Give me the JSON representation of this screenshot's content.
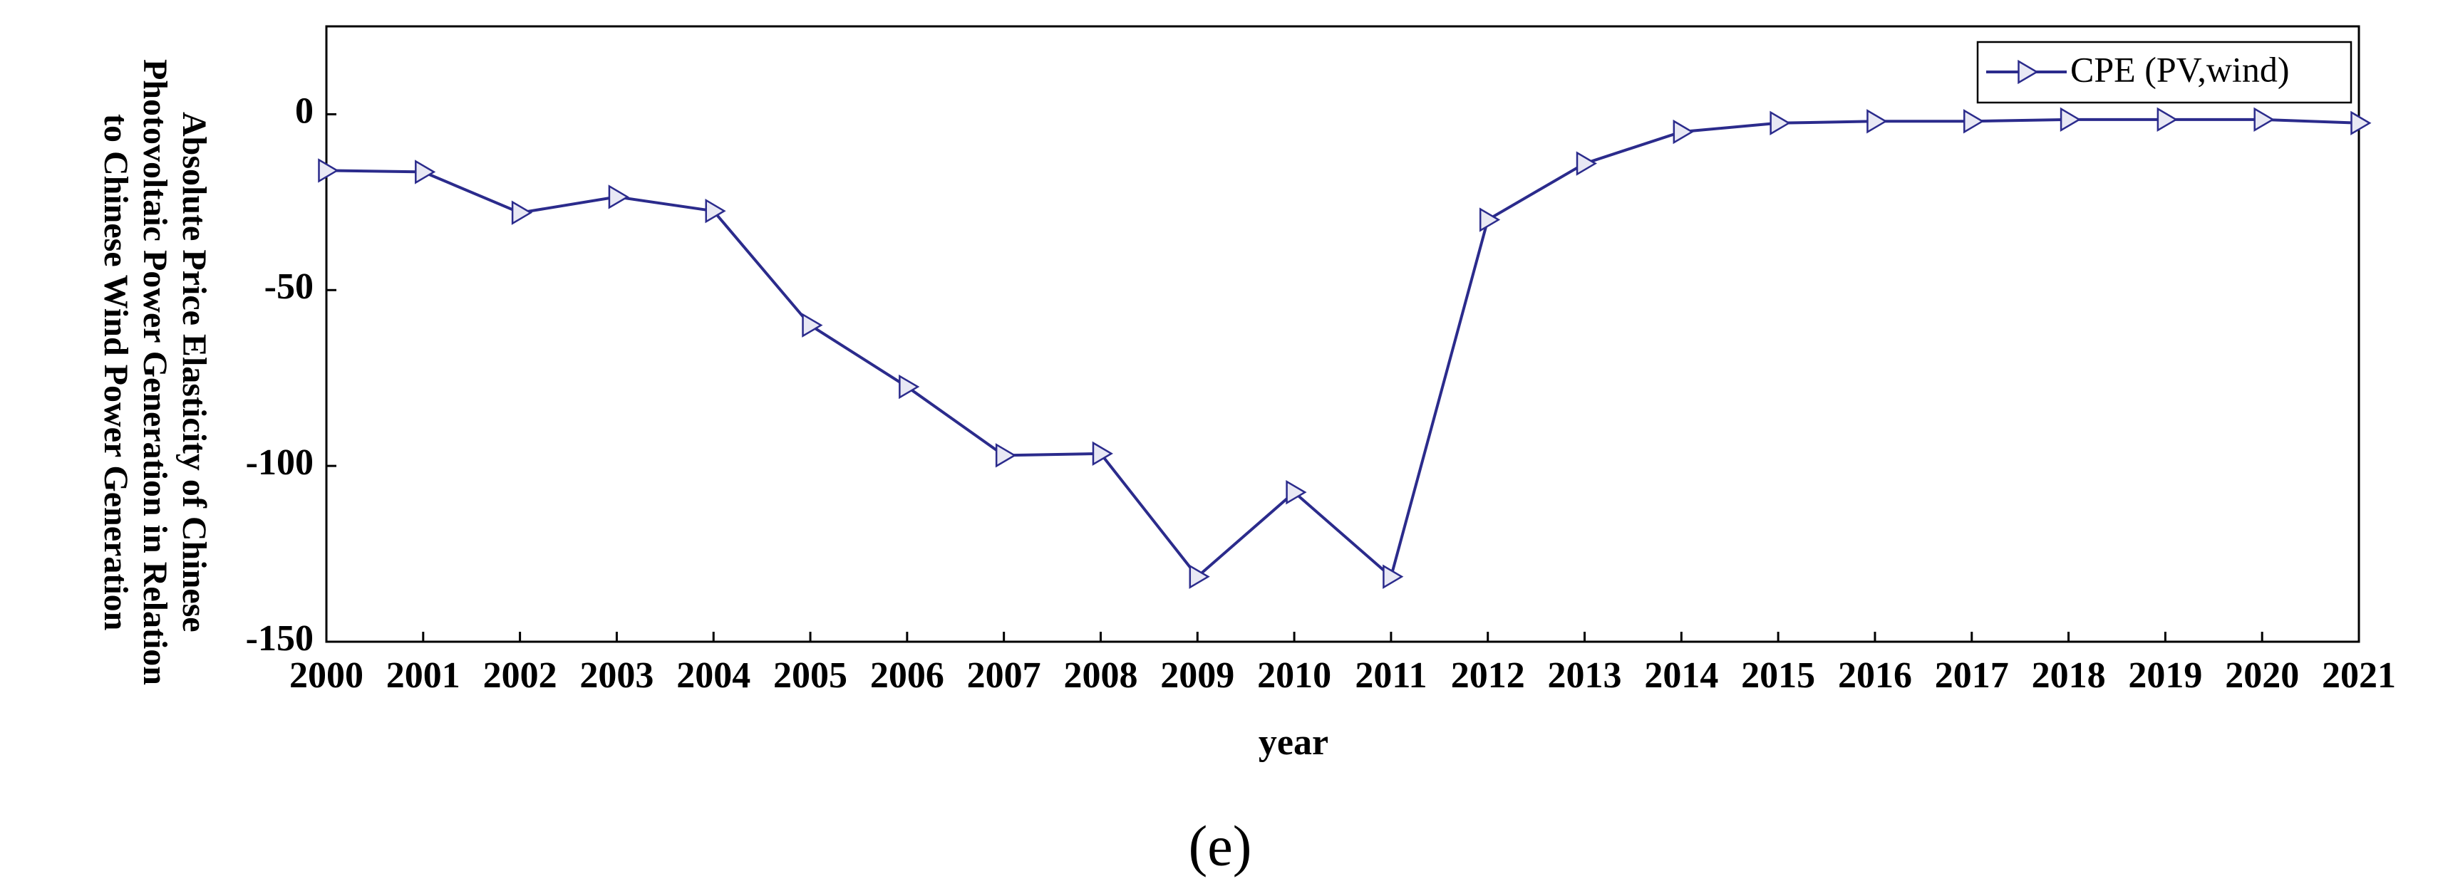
{
  "chart_data": {
    "type": "line",
    "ylabel": "Absolute Price Elasticity of Chinese Photovoltaic Power Generation in Relation to Chinese Wind Power Generation",
    "xlabel": "year",
    "caption": "(e)",
    "x": [
      2000,
      2001,
      2002,
      2003,
      2004,
      2005,
      2006,
      2007,
      2008,
      2009,
      2010,
      2011,
      2012,
      2013,
      2014,
      2015,
      2016,
      2017,
      2018,
      2019,
      2020,
      2021
    ],
    "series": [
      {
        "name": "CPE (PV,wind)",
        "color": "#2b2b8c",
        "values": [
          -16,
          -16.4,
          -28,
          -23.5,
          -27.5,
          -60,
          -77.5,
          -97,
          -96.5,
          -131.5,
          -107.5,
          -131.5,
          -30,
          -14,
          -5,
          -2.5,
          -2,
          -2,
          -1.5,
          -1.5,
          -1.5,
          -2.5
        ]
      }
    ],
    "xlim": [
      2000,
      2021
    ],
    "xticks": [
      2000,
      2001,
      2002,
      2003,
      2004,
      2005,
      2006,
      2007,
      2008,
      2009,
      2010,
      2011,
      2012,
      2013,
      2014,
      2015,
      2016,
      2017,
      2018,
      2019,
      2020,
      2021
    ],
    "ylim": [
      -150,
      25
    ],
    "yticks": [
      -150,
      -100,
      -50,
      0
    ],
    "grid": false,
    "legend": "upper right"
  }
}
